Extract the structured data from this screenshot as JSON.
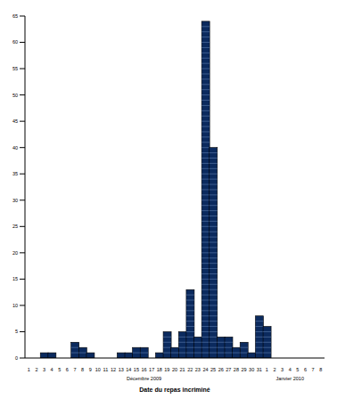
{
  "chart_data": {
    "type": "bar",
    "x_label": "Date du repas incriminé",
    "annotations": [
      "Décembre 2009",
      "Janvier 2010"
    ],
    "categories": [
      "1",
      "2",
      "3",
      "4",
      "5",
      "6",
      "7",
      "8",
      "9",
      "10",
      "11",
      "12",
      "13",
      "14",
      "15",
      "16",
      "17",
      "18",
      "19",
      "20",
      "21",
      "22",
      "23",
      "24",
      "25",
      "26",
      "27",
      "28",
      "29",
      "30",
      "31",
      "1",
      "2",
      "3",
      "4",
      "5",
      "6",
      "7",
      "8"
    ],
    "values": [
      0,
      0,
      1,
      1,
      0,
      0,
      3,
      2,
      1,
      0,
      0,
      0,
      1,
      1,
      2,
      2,
      0,
      1,
      5,
      2,
      5,
      13,
      4,
      64,
      40,
      4,
      4,
      2,
      3,
      1,
      8,
      6,
      0,
      0,
      0,
      0,
      0,
      0,
      0
    ],
    "color": "#0b2a5e",
    "ylim": [
      0,
      65
    ],
    "yticks": [
      0,
      5,
      10,
      15,
      20,
      25,
      30,
      35,
      40,
      45,
      50,
      55,
      60,
      65
    ],
    "grid": false
  }
}
